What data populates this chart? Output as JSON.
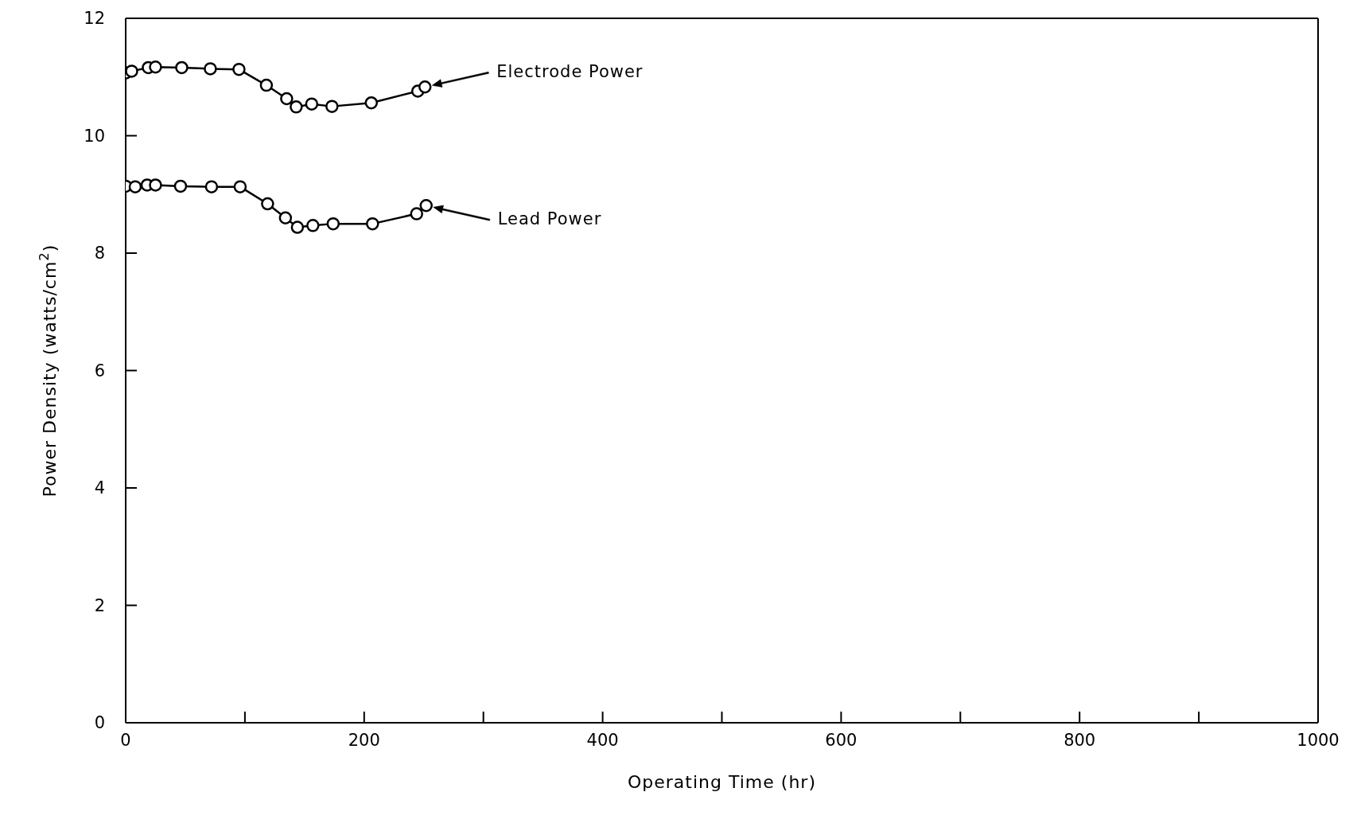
{
  "chart_data": {
    "type": "line",
    "xlabel": "Operating Time (hr)",
    "ylabel": "Power Density (watts/cm$^{2}$)",
    "xlim": [
      0,
      1000
    ],
    "xticks": [
      0,
      {
        "value": 100,
        "label": null
      },
      200,
      {
        "value": 300,
        "label": null
      },
      400,
      {
        "value": 500,
        "label": null
      },
      600,
      {
        "value": 700,
        "label": null
      },
      800,
      {
        "value": 900,
        "label": null
      },
      1000
    ],
    "ylim": [
      0,
      12
    ],
    "yticks": [
      0,
      2,
      4,
      6,
      8,
      10,
      12
    ],
    "marker": "circle",
    "line_style": "solid",
    "annotations": [
      "Electrode Power",
      "Lead Power"
    ],
    "series": [
      {
        "color": "#000000",
        "x": [
          0,
          5,
          19,
          25,
          47,
          71,
          95,
          118,
          135,
          143,
          156,
          173,
          206,
          245,
          251
        ],
        "values": [
          11.07,
          11.1,
          11.16,
          11.17,
          11.16,
          11.14,
          11.13,
          10.86,
          10.63,
          10.49,
          10.54,
          10.5,
          10.56,
          10.76,
          10.83
        ]
      },
      {
        "color": "#000000",
        "x": [
          0,
          8,
          18,
          25,
          46,
          72,
          96,
          119,
          134,
          144,
          157,
          174,
          207,
          244,
          252
        ],
        "values": [
          9.14,
          9.13,
          9.16,
          9.16,
          9.14,
          9.13,
          9.13,
          8.84,
          8.6,
          8.44,
          8.47,
          8.5,
          8.5,
          8.67,
          8.81
        ]
      }
    ]
  }
}
